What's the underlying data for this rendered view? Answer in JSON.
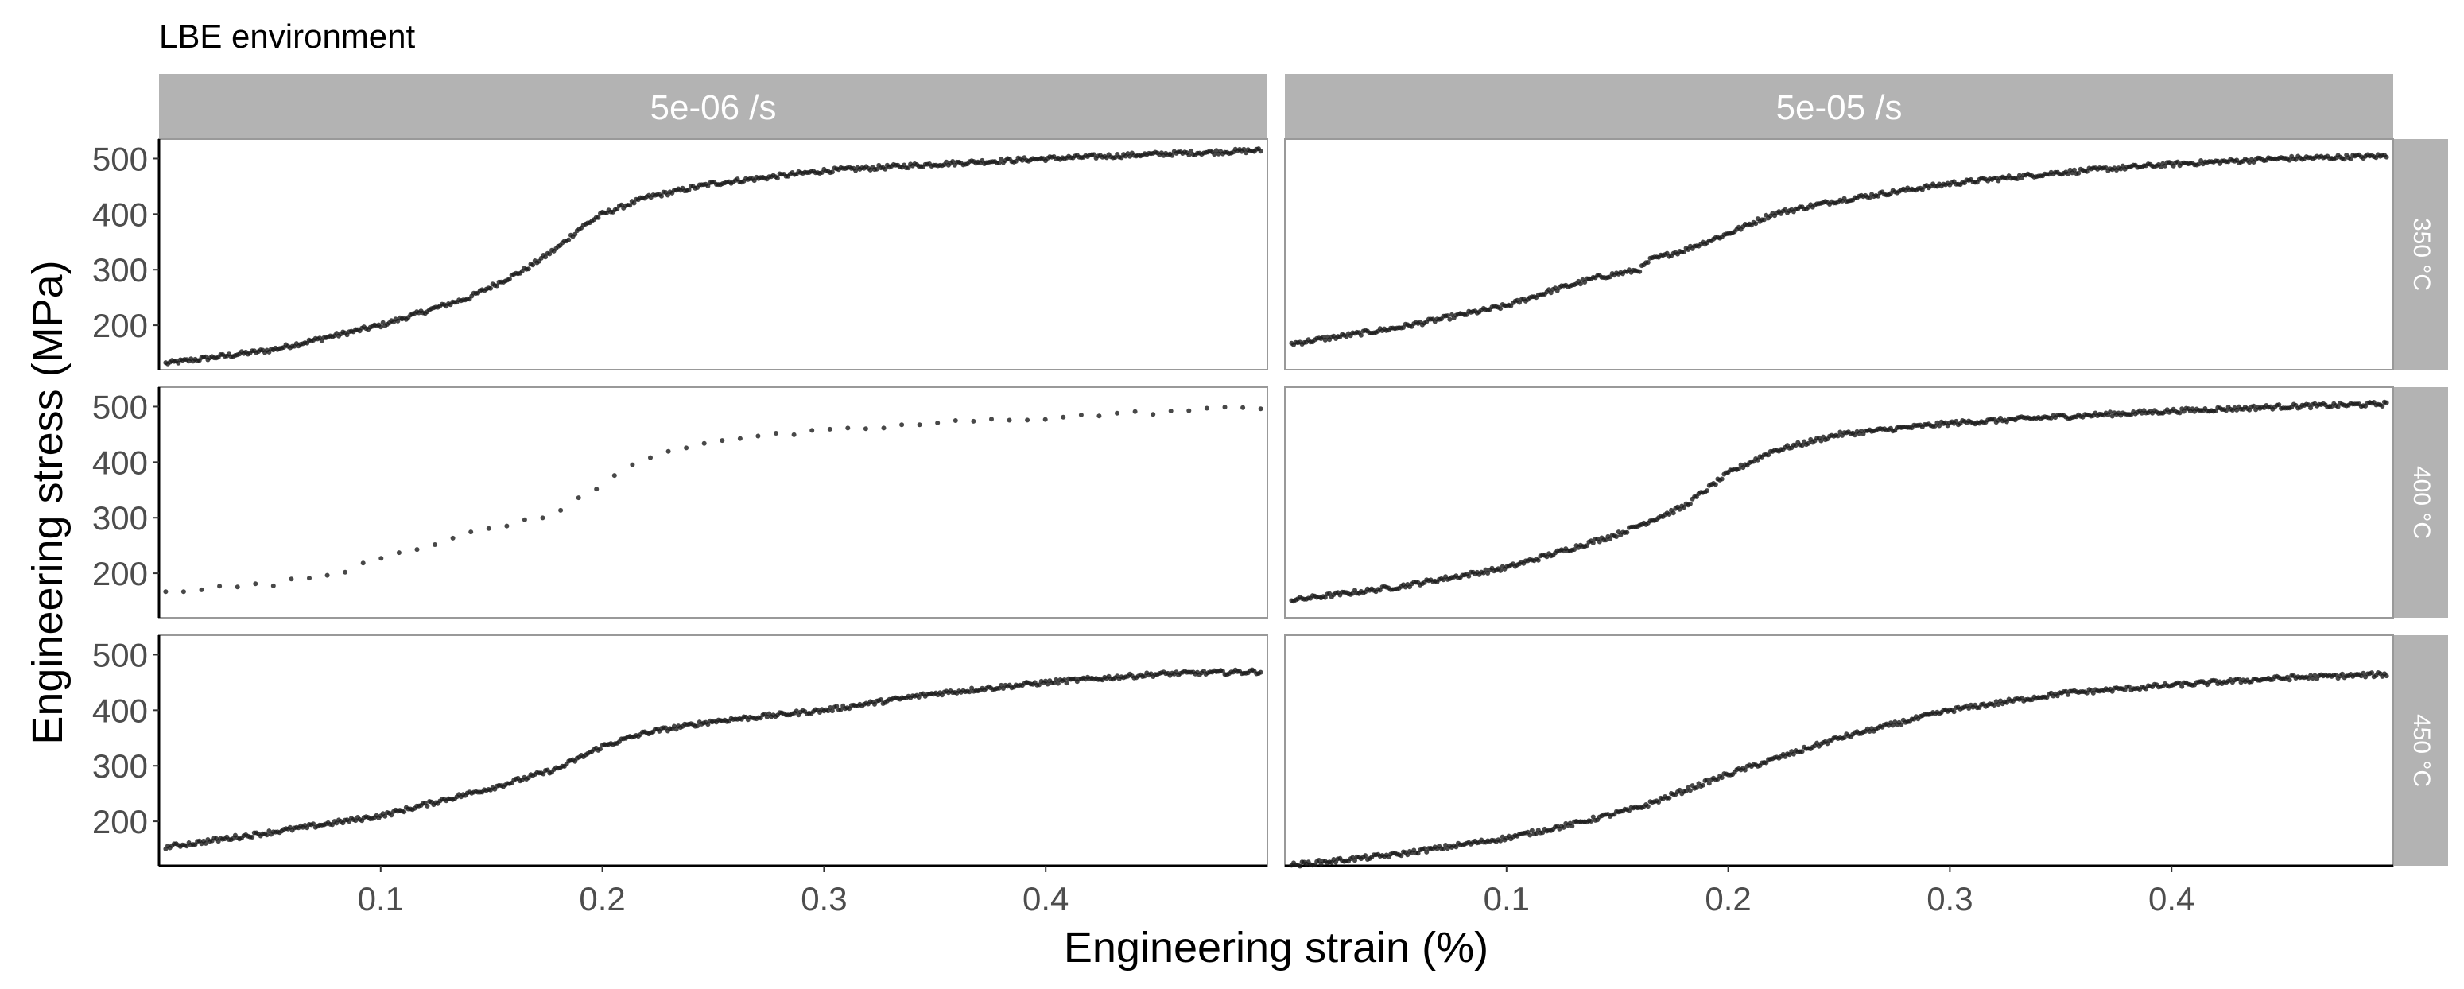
{
  "chart_data": {
    "type": "scatter",
    "title": "LBE environment",
    "xlabel": "Engineering strain (%)",
    "ylabel": "Engineering stress (MPa)",
    "xlim": [
      0.0,
      0.5
    ],
    "ylim": [
      120,
      535
    ],
    "x_ticks": [
      0.1,
      0.2,
      0.3,
      0.4
    ],
    "x_tick_labels": [
      "0.1",
      "0.2",
      "0.3",
      "0.4"
    ],
    "y_ticks": [
      200,
      300,
      400,
      500
    ],
    "y_tick_labels": [
      "200",
      "300",
      "400",
      "500"
    ],
    "grid": false,
    "legend": "none",
    "column_facets": [
      "5e-06 /s",
      "5e-05 /s"
    ],
    "row_facets": [
      "350 °C",
      "400 °C",
      "450 °C"
    ],
    "colors": {
      "points": "#1a1a1a",
      "strip_fill": "#b3b3b3",
      "strip_text": "#ffffff",
      "panel_border": "#999999",
      "axis_line": "#000000",
      "tick_label": "#4d4d4d",
      "title_text": "#000000"
    },
    "panels": [
      {
        "row": "350 °C",
        "column": "5e-06 /s",
        "curve": [
          [
            0.0,
            130
          ],
          [
            0.05,
            155
          ],
          [
            0.1,
            200
          ],
          [
            0.14,
            250
          ],
          [
            0.165,
            300
          ],
          [
            0.18,
            340
          ],
          [
            0.19,
            375
          ],
          [
            0.2,
            400
          ],
          [
            0.22,
            430
          ],
          [
            0.25,
            455
          ],
          [
            0.3,
            478
          ],
          [
            0.35,
            490
          ],
          [
            0.4,
            500
          ],
          [
            0.45,
            508
          ],
          [
            0.5,
            515
          ]
        ],
        "density": 1.0
      },
      {
        "row": "350 °C",
        "column": "5e-05 /s",
        "curve": [
          [
            0.0,
            165
          ],
          [
            0.05,
            195
          ],
          [
            0.1,
            235
          ],
          [
            0.12,
            262
          ],
          [
            0.14,
            285
          ],
          [
            0.16,
            300
          ],
          [
            0.165,
            318
          ],
          [
            0.18,
            335
          ],
          [
            0.2,
            365
          ],
          [
            0.22,
            400
          ],
          [
            0.25,
            425
          ],
          [
            0.3,
            455
          ],
          [
            0.35,
            475
          ],
          [
            0.4,
            490
          ],
          [
            0.45,
            500
          ],
          [
            0.5,
            505
          ]
        ],
        "density": 1.0
      },
      {
        "row": "400 °C",
        "column": "5e-06 /s",
        "curve": [
          [
            0.01,
            170
          ],
          [
            0.05,
            180
          ],
          [
            0.08,
            200
          ],
          [
            0.1,
            230
          ],
          [
            0.15,
            280
          ],
          [
            0.18,
            310
          ],
          [
            0.2,
            360
          ],
          [
            0.22,
            410
          ],
          [
            0.25,
            440
          ],
          [
            0.3,
            455
          ],
          [
            0.35,
            470
          ],
          [
            0.4,
            480
          ],
          [
            0.45,
            490
          ],
          [
            0.5,
            500
          ]
        ],
        "density": 0.12
      },
      {
        "row": "400 °C",
        "column": "5e-05 /s",
        "curve": [
          [
            0.0,
            150
          ],
          [
            0.05,
            175
          ],
          [
            0.1,
            210
          ],
          [
            0.15,
            270
          ],
          [
            0.18,
            320
          ],
          [
            0.2,
            380
          ],
          [
            0.22,
            420
          ],
          [
            0.25,
            450
          ],
          [
            0.3,
            470
          ],
          [
            0.35,
            482
          ],
          [
            0.4,
            492
          ],
          [
            0.45,
            500
          ],
          [
            0.5,
            505
          ]
        ],
        "density": 1.0
      },
      {
        "row": "450 °C",
        "column": "5e-06 /s",
        "curve": [
          [
            0.0,
            152
          ],
          [
            0.05,
            180
          ],
          [
            0.1,
            210
          ],
          [
            0.15,
            260
          ],
          [
            0.18,
            295
          ],
          [
            0.2,
            335
          ],
          [
            0.22,
            360
          ],
          [
            0.25,
            380
          ],
          [
            0.3,
            400
          ],
          [
            0.35,
            430
          ],
          [
            0.4,
            450
          ],
          [
            0.45,
            465
          ],
          [
            0.5,
            470
          ]
        ],
        "density": 1.0
      },
      {
        "row": "450 °C",
        "column": "5e-05 /s",
        "curve": [
          [
            0.0,
            120
          ],
          [
            0.05,
            140
          ],
          [
            0.1,
            170
          ],
          [
            0.13,
            195
          ],
          [
            0.16,
            225
          ],
          [
            0.2,
            285
          ],
          [
            0.25,
            350
          ],
          [
            0.3,
            400
          ],
          [
            0.35,
            430
          ],
          [
            0.4,
            445
          ],
          [
            0.45,
            458
          ],
          [
            0.5,
            465
          ]
        ],
        "density": 1.0
      }
    ]
  }
}
